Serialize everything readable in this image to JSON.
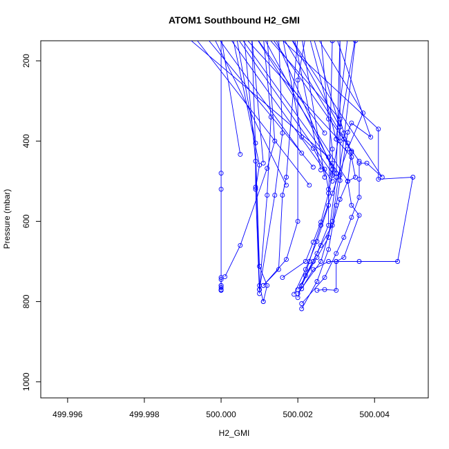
{
  "chart_data": {
    "type": "line",
    "title": "ATOM1 Southbound H2_GMI",
    "xlabel": "H2_GMI",
    "ylabel": "Pressure (mbar)",
    "xlim": [
      499.9953,
      500.0054
    ],
    "ylim": [
      1040,
      150
    ],
    "y_reversed": true,
    "x_ticks": [
      "499.996",
      "499.998",
      "500.000",
      "500.002",
      "500.004"
    ],
    "x_tick_values": [
      499.996,
      499.998,
      500.0,
      500.002,
      500.004
    ],
    "y_ticks": [
      "200",
      "400",
      "600",
      "800",
      "1000"
    ],
    "y_tick_values": [
      200,
      400,
      600,
      800,
      1000
    ],
    "grid": false,
    "series_color": "#0000ff",
    "series": [
      {
        "values": [
          [
            500.0,
            140
          ],
          [
            500.0,
            480
          ],
          [
            500.0,
            520
          ],
          [
            500.0,
            740
          ],
          [
            500.0,
            760
          ],
          [
            500.0,
            770
          ],
          [
            500.0,
            772
          ]
        ]
      },
      {
        "values": [
          [
            500.0,
            772
          ],
          [
            500.0,
            745
          ],
          [
            500.0,
            760
          ],
          [
            500.0,
            765
          ]
        ]
      },
      {
        "values": [
          [
            500.0011,
            800
          ],
          [
            500.001,
            760
          ],
          [
            500.0009,
            450
          ],
          [
            500.0006,
            140
          ]
        ]
      },
      {
        "values": [
          [
            500.0011,
            800
          ],
          [
            500.0012,
            760
          ],
          [
            500.001,
            712
          ],
          [
            500.0008,
            140
          ]
        ]
      },
      {
        "values": [
          [
            500.001,
            780
          ],
          [
            500.0009,
            520
          ],
          [
            500.001,
            460
          ],
          [
            500.0003,
            140
          ]
        ]
      },
      {
        "values": [
          [
            500.001,
            770
          ],
          [
            500.0012,
            535
          ],
          [
            500.0013,
            340
          ],
          [
            500.0011,
            140
          ]
        ]
      },
      {
        "values": [
          [
            500.001,
            770
          ],
          [
            500.0014,
            535
          ],
          [
            500.0016,
            380
          ],
          [
            500.0015,
            140
          ]
        ]
      },
      {
        "values": [
          [
            500.0011,
            760
          ],
          [
            500.0015,
            720
          ],
          [
            500.0016,
            535
          ],
          [
            500.0017,
            490
          ],
          [
            500.002,
            140
          ]
        ]
      },
      {
        "values": [
          [
            500.0011,
            760
          ],
          [
            500.0017,
            695
          ],
          [
            500.002,
            600
          ],
          [
            500.002,
            248
          ],
          [
            500.0022,
            140
          ]
        ]
      },
      {
        "values": [
          [
            500.0019,
            782
          ],
          [
            500.0022,
            720
          ],
          [
            500.0025,
            650
          ],
          [
            500.0028,
            560
          ],
          [
            500.0029,
            150
          ]
        ]
      },
      {
        "values": [
          [
            500.002,
            770
          ],
          [
            500.0025,
            690
          ],
          [
            500.0028,
            640
          ],
          [
            500.003,
            490
          ],
          [
            500.0031,
            140
          ]
        ]
      },
      {
        "values": [
          [
            500.002,
            780
          ],
          [
            500.0026,
            700
          ],
          [
            500.0029,
            600
          ],
          [
            500.0032,
            395
          ],
          [
            500.0035,
            150
          ]
        ]
      },
      {
        "values": [
          [
            500.002,
            790
          ],
          [
            500.0023,
            700
          ],
          [
            500.0026,
            610
          ],
          [
            500.0029,
            530
          ],
          [
            500.0033,
            420
          ],
          [
            500.0037,
            330
          ],
          [
            500.0025,
            140
          ]
        ]
      },
      {
        "values": [
          [
            500.0021,
            818
          ],
          [
            500.0025,
            750
          ],
          [
            500.0028,
            670
          ],
          [
            500.003,
            560
          ],
          [
            500.0033,
            378
          ],
          [
            500.0034,
            355
          ],
          [
            500.0039,
            390
          ],
          [
            500.003,
            140
          ]
        ]
      },
      {
        "values": [
          [
            500.0021,
            805
          ],
          [
            500.0027,
            740
          ],
          [
            500.003,
            680
          ],
          [
            500.0032,
            640
          ],
          [
            500.0034,
            590
          ],
          [
            500.0036,
            540
          ],
          [
            500.0036,
            495
          ],
          [
            500.0036,
            455
          ],
          [
            500.0038,
            455
          ],
          [
            500.0042,
            490
          ],
          [
            500.0018,
            140
          ]
        ]
      },
      {
        "values": [
          [
            500.0021,
            768
          ],
          [
            500.0024,
            720
          ],
          [
            500.0028,
            700
          ],
          [
            500.003,
            700
          ],
          [
            500.0036,
            700
          ],
          [
            500.0046,
            700
          ],
          [
            500.005,
            490
          ],
          [
            500.0041,
            495
          ],
          [
            500.0041,
            370
          ],
          [
            500.0015,
            140
          ]
        ]
      },
      {
        "values": [
          [
            500.0025,
            772
          ],
          [
            500.0027,
            770
          ],
          [
            500.003,
            772
          ],
          [
            500.003,
            700
          ],
          [
            500.0032,
            690
          ],
          [
            500.0036,
            585
          ],
          [
            500.0034,
            560
          ],
          [
            500.0033,
            500
          ],
          [
            500.0034,
            428
          ],
          [
            500.0033,
            405
          ],
          [
            500.0032,
            380
          ],
          [
            500.0031,
            345
          ],
          [
            500.0012,
            140
          ]
        ]
      },
      {
        "values": [
          [
            500.0021,
            760
          ],
          [
            500.0024,
            700
          ],
          [
            500.0026,
            660
          ],
          [
            500.0029,
            610
          ],
          [
            500.0031,
            545
          ],
          [
            500.0033,
            500
          ],
          [
            500.0035,
            490
          ],
          [
            500.0034,
            440
          ],
          [
            500.003,
            395
          ],
          [
            500.0023,
            140
          ]
        ]
      },
      {
        "values": [
          [
            500.0016,
            740
          ],
          [
            500.0022,
            700
          ],
          [
            500.0024,
            652
          ],
          [
            500.0026,
            602
          ],
          [
            500.0028,
            530
          ],
          [
            500.0029,
            485
          ],
          [
            500.0029,
            455
          ],
          [
            500.0029,
            420
          ],
          [
            500.0028,
            345
          ],
          [
            500.0026,
            140
          ]
        ]
      },
      {
        "values": [
          [
            500.0022,
            735
          ],
          [
            500.0025,
            680
          ],
          [
            500.0028,
            610
          ],
          [
            500.0028,
            520
          ],
          [
            500.0027,
            470
          ],
          [
            500.0024,
            418
          ],
          [
            500.0021,
            390
          ],
          [
            500.0016,
            140
          ]
        ]
      },
      {
        "values": [
          [
            500.0001,
            738
          ],
          [
            500.0005,
            660
          ],
          [
            500.0012,
            468
          ],
          [
            500.0014,
            400
          ],
          [
            500.0012,
            140
          ]
        ]
      },
      {
        "values": [
          [
            500.0009,
            515
          ],
          [
            500.0009,
            405
          ],
          [
            500.0004,
            140
          ]
        ]
      },
      {
        "values": [
          [
            500.0005,
            433
          ],
          [
            500.0,
            140
          ]
        ]
      },
      {
        "values": [
          [
            500.0011,
            455
          ],
          [
            500.0008,
            140
          ]
        ]
      },
      {
        "values": [
          [
            500.0027,
            490
          ],
          [
            500.0021,
            140
          ]
        ]
      },
      {
        "values": [
          [
            500.0026,
            472
          ],
          [
            500.0019,
            140
          ]
        ]
      },
      {
        "values": [
          [
            500.0031,
            365
          ],
          [
            500.0024,
            140
          ]
        ]
      },
      {
        "values": [
          [
            500.0031,
            365
          ],
          [
            500.0018,
            140
          ]
        ]
      },
      {
        "values": [
          [
            500.0029,
            470
          ],
          [
            500.0014,
            140
          ]
        ]
      },
      {
        "values": [
          [
            500.003,
            480
          ],
          [
            500.0011,
            140
          ]
        ]
      },
      {
        "values": [
          [
            500.0031,
            485
          ],
          [
            500.0005,
            140
          ]
        ]
      },
      {
        "values": [
          [
            500.0033,
            500
          ],
          [
            500.0009,
            140
          ]
        ]
      },
      {
        "values": [
          [
            500.0029,
            480
          ],
          [
            500.0004,
            140
          ]
        ]
      },
      {
        "values": [
          [
            500.0024,
            465
          ],
          [
            499.9996,
            140
          ]
        ]
      },
      {
        "values": [
          [
            500.0021,
            430
          ],
          [
            499.9999,
            140
          ]
        ]
      },
      {
        "values": [
          [
            500.0031,
            400
          ],
          [
            500.0006,
            140
          ]
        ]
      },
      {
        "values": [
          [
            500.0034,
            425
          ],
          [
            500.0016,
            140
          ]
        ]
      },
      {
        "values": [
          [
            500.0036,
            450
          ],
          [
            500.0013,
            140
          ]
        ]
      },
      {
        "values": [
          [
            500.0027,
            380
          ],
          [
            500.0009,
            140
          ]
        ]
      },
      {
        "values": [
          [
            500.0028,
            440
          ],
          [
            499.9991,
            140
          ]
        ]
      },
      {
        "values": [
          [
            500.0023,
            510
          ],
          [
            499.9993,
            140
          ]
        ]
      },
      {
        "values": [
          [
            500.0017,
            510
          ],
          [
            499.9998,
            140
          ]
        ]
      },
      {
        "values": [
          [
            500.0029,
            500
          ],
          [
            500.0002,
            140
          ]
        ]
      },
      {
        "values": [
          [
            500.003,
            395
          ],
          [
            500.0033,
            140
          ]
        ]
      },
      {
        "values": [
          [
            500.0031,
            498
          ],
          [
            500.0031,
            140
          ]
        ]
      },
      {
        "values": [
          [
            500.0029,
            485
          ],
          [
            500.0035,
            140
          ]
        ]
      }
    ]
  }
}
